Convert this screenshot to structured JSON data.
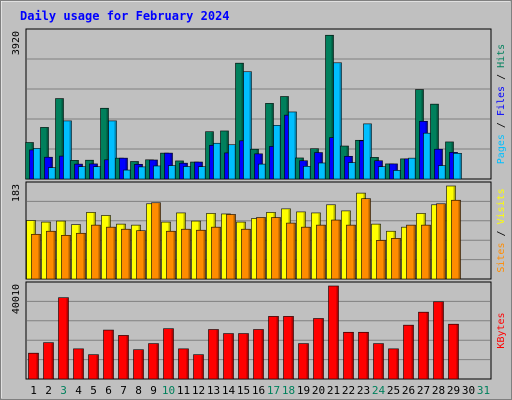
{
  "chart_data": [
    {
      "type": "bar",
      "title": "Daily usage for February 2024",
      "categories": [
        "1",
        "2",
        "3",
        "4",
        "5",
        "6",
        "7",
        "8",
        "9",
        "10",
        "11",
        "12",
        "13",
        "14",
        "15",
        "16",
        "17",
        "18",
        "19",
        "20",
        "21",
        "22",
        "23",
        "24",
        "25",
        "26",
        "27",
        "28",
        "29",
        "30",
        "31"
      ],
      "weekend_categories": [
        "3",
        "10",
        "17",
        "18",
        "24",
        "31"
      ],
      "ymax_label": "3920",
      "ylim": [
        0,
        3920
      ],
      "series": [
        {
          "name": "Hits",
          "color": "#00805c",
          "values": [
            980,
            1385,
            2160,
            500,
            505,
            1900,
            560,
            470,
            515,
            695,
            485,
            455,
            1270,
            1290,
            3110,
            800,
            2030,
            2215,
            565,
            815,
            3860,
            885,
            1040,
            580,
            405,
            540,
            2400,
            2010,
            995,
            null,
            null
          ]
        },
        {
          "name": "Files",
          "color": "#0000ff",
          "values": [
            780,
            585,
            615,
            400,
            405,
            515,
            560,
            395,
            510,
            695,
            425,
            455,
            905,
            700,
            1025,
            675,
            875,
            1715,
            490,
            710,
            1110,
            610,
            1025,
            490,
            405,
            540,
            1550,
            800,
            715,
            null,
            null
          ]
        },
        {
          "name": "Pages",
          "color": "#00bfff",
          "values": [
            820,
            305,
            1560,
            330,
            330,
            1560,
            240,
            325,
            350,
            360,
            335,
            330,
            960,
            920,
            2880,
            400,
            1440,
            1800,
            340,
            430,
            3120,
            440,
            1480,
            330,
            230,
            560,
            1230,
            360,
            690,
            null,
            null
          ]
        }
      ],
      "ylabel_parts": [
        "Pages",
        "Files",
        "Hits"
      ]
    },
    {
      "type": "bar",
      "ymax_label": "183",
      "ylim": [
        0,
        183
      ],
      "series": [
        {
          "name": "Visits",
          "color": "#ffff00",
          "values": [
            115,
            112,
            114,
            107,
            131,
            125,
            108,
            106,
            148,
            112,
            130,
            114,
            129,
            128,
            112,
            119,
            131,
            138,
            132,
            130,
            146,
            134,
            169,
            108,
            94,
            102,
            129,
            146,
            183,
            null,
            null
          ]
        },
        {
          "name": "Sites",
          "color": "#ff8c00",
          "values": [
            88,
            94,
            86,
            90,
            106,
            102,
            98,
            95,
            150,
            94,
            98,
            96,
            102,
            127,
            98,
            121,
            121,
            110,
            102,
            106,
            116,
            106,
            158,
            76,
            80,
            106,
            106,
            148,
            155,
            null,
            null
          ]
        }
      ],
      "ylabel_parts": [
        "Sites",
        "Visits"
      ]
    },
    {
      "type": "bar",
      "ymax_label": "40010",
      "ylim": [
        0,
        40010
      ],
      "series": [
        {
          "name": "KBytes",
          "color": "#ff0000",
          "values": [
            11110,
            15640,
            34980,
            12970,
            10460,
            21050,
            18750,
            12600,
            15230,
            21640,
            12970,
            10460,
            21290,
            19550,
            19550,
            21290,
            26930,
            26930,
            15230,
            26030,
            40010,
            20110,
            20110,
            15230,
            12970,
            23160,
            28750,
            33220,
            23580,
            null,
            null
          ]
        }
      ],
      "ylabel_parts": [
        "KBytes"
      ]
    }
  ],
  "colors": {
    "background": "#c0c0c0",
    "title": "#0000ff",
    "weekday_label": "#000000",
    "weekend_label": "#00805c"
  }
}
